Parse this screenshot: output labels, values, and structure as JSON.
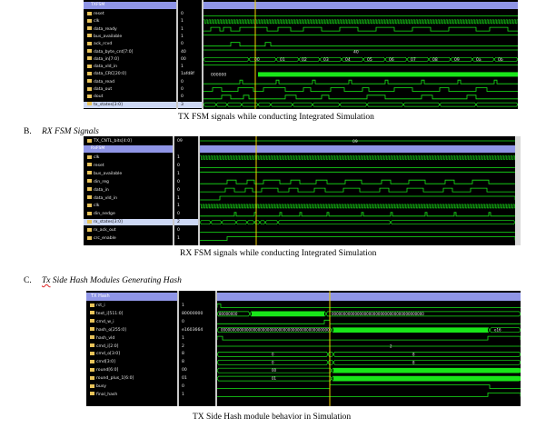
{
  "tx": {
    "header": "TXFSM",
    "signals": [
      {
        "name": "reset",
        "value": "0"
      },
      {
        "name": "clk",
        "value": "1"
      },
      {
        "name": "data_ready",
        "value": "1"
      },
      {
        "name": "bus_available",
        "value": "1"
      },
      {
        "name": "ack_rcvd",
        "value": "0"
      },
      {
        "name": "data_byte_cnt[7:0]",
        "value": "40"
      },
      {
        "name": "data_in[7:0]",
        "value": "00"
      },
      {
        "name": "data_vld_in",
        "value": "1"
      },
      {
        "name": "data_CRC[20:0]",
        "value": "1afd8f"
      },
      {
        "name": "data_read",
        "value": "0"
      },
      {
        "name": "data_out",
        "value": "0"
      },
      {
        "name": "dout",
        "value": "0"
      },
      {
        "name": "tx_states[3:0]",
        "value": "3"
      }
    ],
    "wave_labels": [
      "40",
      "00",
      "01",
      "02",
      "03",
      "04",
      "05",
      "06",
      "07",
      "08",
      "09",
      "0a",
      "0b",
      "000000"
    ],
    "caption": "TX FSM signals while conducting Integrated Simulation"
  },
  "rx_heading": {
    "letter": "B.",
    "title": "RX FSM Signals"
  },
  "rx": {
    "top_signal": {
      "name": "TX_CNTL_bits[4:0]",
      "value": "09"
    },
    "header": "RxFSM",
    "signals": [
      {
        "name": "clk",
        "value": "1"
      },
      {
        "name": "reset",
        "value": "0"
      },
      {
        "name": "bus_available",
        "value": "1"
      },
      {
        "name": "din_reg",
        "value": "0"
      },
      {
        "name": "data_in",
        "value": "0"
      },
      {
        "name": "data_vld_in",
        "value": "1"
      },
      {
        "name": "clk",
        "value": "1"
      },
      {
        "name": "din_nedge",
        "value": "0"
      },
      {
        "name": "rx_states[3:0]",
        "value": "2"
      },
      {
        "name": "rx_ack_out",
        "value": "0"
      },
      {
        "name": "crc_enable",
        "value": "1"
      }
    ],
    "wave_labels": [
      "09"
    ],
    "caption": "RX FSM signals while conducting Integrated Simulation"
  },
  "hash_heading": {
    "letter": "C.",
    "title_prefix": "Tx",
    "title_rest": " Side Hash Modules Generating Hash"
  },
  "hash": {
    "header": "TX Hash",
    "signals": [
      {
        "name": "rst_i",
        "value": "1"
      },
      {
        "name": "text_i[511:0]",
        "value": "80000000"
      },
      {
        "name": "cmd_w_i",
        "value": "0"
      },
      {
        "name": "hash_o[255:0]",
        "value": "e1603664"
      },
      {
        "name": "hash_vld",
        "value": "1"
      },
      {
        "name": "cmd_i[2:0]",
        "value": "2"
      },
      {
        "name": "cmd_o[3:0]",
        "value": "8"
      },
      {
        "name": "cmd[3:0]",
        "value": "8"
      },
      {
        "name": "round[6:0]",
        "value": "00"
      },
      {
        "name": "round_plus_1[6:0]",
        "value": "01"
      },
      {
        "name": "busy",
        "value": "0"
      },
      {
        "name": "final_hash",
        "value": "1"
      }
    ],
    "wave_labels": [
      "80000000",
      "0000000000000000000000000000000000000000",
      "00000000000000000000000000000000000000000000000",
      "e16",
      "2",
      "0",
      "8",
      "0",
      "8",
      "00",
      "01"
    ],
    "caption": "TX Side Hash module behavior in Simulation"
  },
  "colors": {
    "wave": "#19e619",
    "header": "#8f95e6",
    "cursor": "#f2d200",
    "background": "#000000"
  }
}
